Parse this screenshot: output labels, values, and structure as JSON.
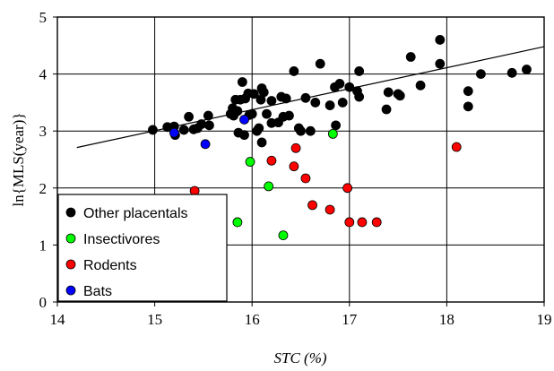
{
  "chart_data": {
    "type": "scatter",
    "xlabel": "STC (%)",
    "ylabel": "ln{MLS(year)}",
    "xlim": [
      14,
      19
    ],
    "ylim": [
      0,
      5
    ],
    "x_ticks": [
      "14",
      "15",
      "16",
      "17",
      "18",
      "19"
    ],
    "y_ticks": [
      "0",
      "1",
      "2",
      "3",
      "4",
      "5"
    ],
    "grid": true,
    "legend_position": "bottom-left",
    "trendline": {
      "x": [
        14.2,
        19.0
      ],
      "y": [
        2.71,
        4.48
      ]
    },
    "series": [
      {
        "name": "Other placentals",
        "color": "#000000",
        "points": [
          [
            14.98,
            3.02
          ],
          [
            15.13,
            3.07
          ],
          [
            15.2,
            3.08
          ],
          [
            15.21,
            2.93
          ],
          [
            15.3,
            3.02
          ],
          [
            15.35,
            3.25
          ],
          [
            15.4,
            3.03
          ],
          [
            15.44,
            3.05
          ],
          [
            15.48,
            3.12
          ],
          [
            15.55,
            3.27
          ],
          [
            15.56,
            3.1
          ],
          [
            15.78,
            3.3
          ],
          [
            15.8,
            3.4
          ],
          [
            15.81,
            3.27
          ],
          [
            15.83,
            3.55
          ],
          [
            15.85,
            3.35
          ],
          [
            15.86,
            2.97
          ],
          [
            15.88,
            3.55
          ],
          [
            15.9,
            3.86
          ],
          [
            15.92,
            2.93
          ],
          [
            15.93,
            3.57
          ],
          [
            15.96,
            3.66
          ],
          [
            15.97,
            3.28
          ],
          [
            16.0,
            3.3
          ],
          [
            16.02,
            3.65
          ],
          [
            16.05,
            3.0
          ],
          [
            16.07,
            3.05
          ],
          [
            16.09,
            3.55
          ],
          [
            16.1,
            3.75
          ],
          [
            16.1,
            2.8
          ],
          [
            16.12,
            3.68
          ],
          [
            16.15,
            3.3
          ],
          [
            16.2,
            3.53
          ],
          [
            16.2,
            3.14
          ],
          [
            16.27,
            3.15
          ],
          [
            16.3,
            3.6
          ],
          [
            16.32,
            3.25
          ],
          [
            16.35,
            3.57
          ],
          [
            16.38,
            3.27
          ],
          [
            16.43,
            4.05
          ],
          [
            16.48,
            3.05
          ],
          [
            16.5,
            3.0
          ],
          [
            16.55,
            3.58
          ],
          [
            16.6,
            3.0
          ],
          [
            16.65,
            3.5
          ],
          [
            16.7,
            4.18
          ],
          [
            16.8,
            3.45
          ],
          [
            16.85,
            3.77
          ],
          [
            16.86,
            3.1
          ],
          [
            16.9,
            3.83
          ],
          [
            16.93,
            3.5
          ],
          [
            17.0,
            3.77
          ],
          [
            17.08,
            3.7
          ],
          [
            17.1,
            4.05
          ],
          [
            17.1,
            3.6
          ],
          [
            17.38,
            3.38
          ],
          [
            17.4,
            3.68
          ],
          [
            17.5,
            3.65
          ],
          [
            17.52,
            3.62
          ],
          [
            17.63,
            4.3
          ],
          [
            17.73,
            3.8
          ],
          [
            17.93,
            4.18
          ],
          [
            17.93,
            4.6
          ],
          [
            18.22,
            3.7
          ],
          [
            18.22,
            3.43
          ],
          [
            18.35,
            4.0
          ],
          [
            18.67,
            4.02
          ],
          [
            18.82,
            4.08
          ]
        ]
      },
      {
        "name": "Insectivores",
        "color": "#00ff00",
        "points": [
          [
            15.85,
            1.4
          ],
          [
            15.98,
            2.46
          ],
          [
            16.17,
            2.03
          ],
          [
            16.32,
            1.17
          ],
          [
            16.83,
            2.95
          ]
        ]
      },
      {
        "name": "Rodents",
        "color": "#ff0000",
        "points": [
          [
            15.41,
            1.95
          ],
          [
            16.2,
            2.48
          ],
          [
            16.43,
            2.38
          ],
          [
            16.45,
            2.7
          ],
          [
            16.55,
            2.17
          ],
          [
            16.62,
            1.7
          ],
          [
            16.8,
            1.62
          ],
          [
            16.98,
            2.0
          ],
          [
            17.0,
            1.4
          ],
          [
            17.13,
            1.4
          ],
          [
            17.28,
            1.4
          ],
          [
            18.1,
            2.72
          ]
        ]
      },
      {
        "name": "Bats",
        "color": "#0000ff",
        "points": [
          [
            15.2,
            2.97
          ],
          [
            15.52,
            2.77
          ],
          [
            15.92,
            3.2
          ]
        ]
      }
    ]
  }
}
